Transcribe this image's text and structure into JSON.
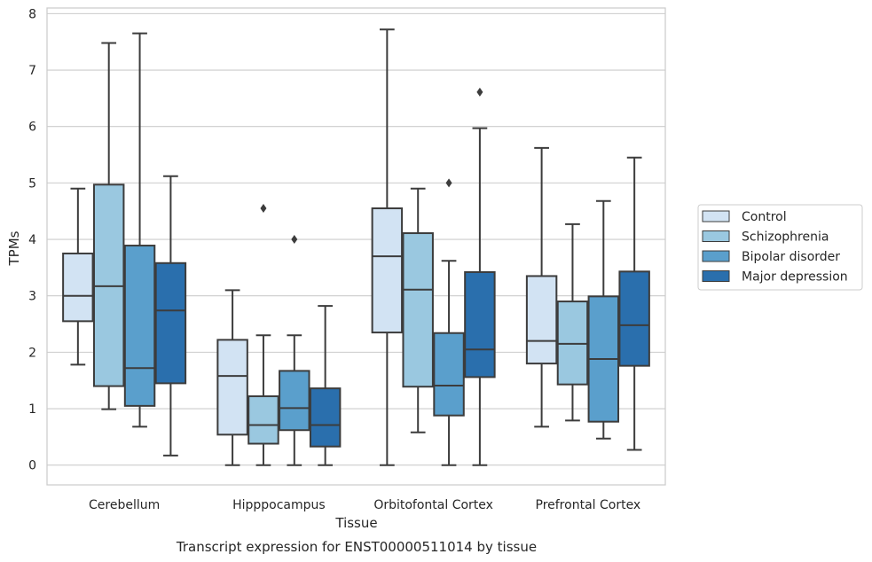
{
  "chart_data": {
    "type": "box",
    "title": "",
    "caption": "Transcript expression for ENST00000511014 by tissue",
    "xlabel": "Tissue",
    "ylabel": "TPMs",
    "ylim": [
      -0.35,
      8.1
    ],
    "yticks": [
      0,
      1,
      2,
      3,
      4,
      5,
      6,
      7,
      8
    ],
    "grid": "horizontal",
    "legend_position": "right",
    "categories": [
      "Cerebellum",
      "Hipppocampus",
      "Orbitofontal Cortex",
      "Prefrontal Cortex"
    ],
    "series": [
      {
        "name": "Control",
        "color": "#d2e3f3",
        "boxes": [
          {
            "whislo": 1.78,
            "q1": 2.55,
            "med": 3.0,
            "q3": 3.75,
            "whishi": 4.9,
            "fliers": []
          },
          {
            "whislo": 0.0,
            "q1": 0.54,
            "med": 1.58,
            "q3": 2.22,
            "whishi": 3.1,
            "fliers": []
          },
          {
            "whislo": 0.0,
            "q1": 2.35,
            "med": 3.7,
            "q3": 4.55,
            "whishi": 7.72,
            "fliers": []
          },
          {
            "whislo": 0.68,
            "q1": 1.8,
            "med": 2.2,
            "q3": 3.35,
            "whishi": 5.62,
            "fliers": []
          }
        ]
      },
      {
        "name": "Schizophrenia",
        "color": "#9ac8e0",
        "boxes": [
          {
            "whislo": 0.99,
            "q1": 1.4,
            "med": 3.17,
            "q3": 4.97,
            "whishi": 7.48,
            "fliers": []
          },
          {
            "whislo": 0.0,
            "q1": 0.38,
            "med": 0.71,
            "q3": 1.22,
            "whishi": 2.3,
            "fliers": [
              4.55
            ]
          },
          {
            "whislo": 0.58,
            "q1": 1.39,
            "med": 3.11,
            "q3": 4.11,
            "whishi": 4.9,
            "fliers": []
          },
          {
            "whislo": 0.79,
            "q1": 1.43,
            "med": 2.15,
            "q3": 2.9,
            "whishi": 4.27,
            "fliers": []
          }
        ]
      },
      {
        "name": "Bipolar disorder",
        "color": "#5a9fcc",
        "boxes": [
          {
            "whislo": 0.68,
            "q1": 1.05,
            "med": 1.72,
            "q3": 3.89,
            "whishi": 7.65,
            "fliers": []
          },
          {
            "whislo": 0.0,
            "q1": 0.62,
            "med": 1.01,
            "q3": 1.67,
            "whishi": 2.3,
            "fliers": [
              4.0
            ]
          },
          {
            "whislo": 0.0,
            "q1": 0.88,
            "med": 1.41,
            "q3": 2.34,
            "whishi": 3.62,
            "fliers": [
              5.0
            ]
          },
          {
            "whislo": 0.47,
            "q1": 0.77,
            "med": 1.88,
            "q3": 2.99,
            "whishi": 4.68,
            "fliers": []
          }
        ]
      },
      {
        "name": "Major depression",
        "color": "#2a6fad",
        "boxes": [
          {
            "whislo": 0.17,
            "q1": 1.45,
            "med": 2.74,
            "q3": 3.58,
            "whishi": 5.12,
            "fliers": []
          },
          {
            "whislo": 0.0,
            "q1": 0.33,
            "med": 0.71,
            "q3": 1.36,
            "whishi": 2.82,
            "fliers": []
          },
          {
            "whislo": 0.0,
            "q1": 1.56,
            "med": 2.05,
            "q3": 3.42,
            "whishi": 5.97,
            "fliers": [
              6.61
            ]
          },
          {
            "whislo": 0.27,
            "q1": 1.76,
            "med": 2.48,
            "q3": 3.43,
            "whishi": 5.45,
            "fliers": []
          }
        ]
      }
    ]
  }
}
